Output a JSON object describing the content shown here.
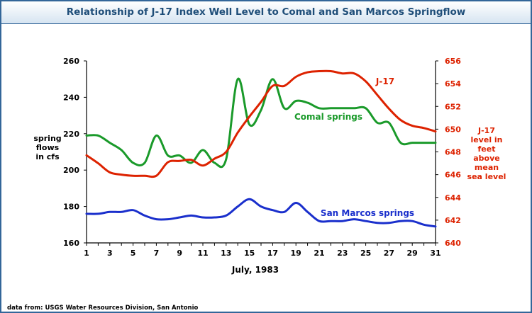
{
  "title": "Relationship of J-17 Index Well Level to Comal and San Marcos Springflow",
  "source": "data from:  USGS Water Resources Division, San Antonio",
  "chart_data": {
    "type": "line",
    "xlabel": "July, 1983",
    "ylabel_left": [
      "spring",
      "flows",
      "in cfs"
    ],
    "ylabel_right": [
      "J-17",
      "level in",
      "feet",
      "above",
      "mean",
      "sea level"
    ],
    "xlim": [
      1,
      31
    ],
    "ylim_left": [
      160,
      260
    ],
    "ylim_right": [
      640,
      656
    ],
    "x_ticks": [
      1,
      3,
      5,
      7,
      9,
      11,
      13,
      15,
      17,
      19,
      21,
      23,
      25,
      27,
      29,
      31
    ],
    "y_ticks_left": [
      160,
      180,
      200,
      220,
      240,
      260
    ],
    "y_ticks_right": [
      640,
      642,
      644,
      646,
      648,
      650,
      652,
      654,
      656
    ],
    "grid": false,
    "series": [
      {
        "name": "Comal springs",
        "axis": "left",
        "color": "#1a9a2a",
        "x": [
          1,
          2,
          3,
          4,
          5,
          6,
          7,
          8,
          9,
          10,
          11,
          12,
          13,
          14,
          15,
          16,
          17,
          18,
          19,
          20,
          21,
          22,
          23,
          24,
          25,
          26,
          27,
          28,
          29,
          30,
          31
        ],
        "values": [
          219,
          219,
          215,
          211,
          204,
          204,
          219,
          208,
          208,
          204,
          211,
          204,
          206,
          250,
          225,
          233,
          250,
          234,
          238,
          237,
          234,
          234,
          234,
          234,
          234,
          226,
          226,
          215,
          215,
          215,
          215
        ]
      },
      {
        "name": "San Marcos springs",
        "axis": "left",
        "color": "#1a2fcc",
        "x": [
          1,
          2,
          3,
          4,
          5,
          6,
          7,
          8,
          9,
          10,
          11,
          12,
          13,
          14,
          15,
          16,
          17,
          18,
          19,
          20,
          21,
          22,
          23,
          24,
          25,
          26,
          27,
          28,
          29,
          30,
          31
        ],
        "values": [
          176,
          176,
          177,
          177,
          178,
          175,
          173,
          173,
          174,
          175,
          174,
          174,
          175,
          180,
          184,
          180,
          178,
          177,
          182,
          177,
          172,
          172,
          172,
          173,
          172,
          171,
          171,
          172,
          172,
          170,
          169
        ]
      },
      {
        "name": "J-17",
        "axis": "right",
        "color": "#dd2200",
        "x": [
          1,
          2,
          3,
          4,
          5,
          6,
          7,
          8,
          9,
          10,
          11,
          12,
          13,
          14,
          15,
          16,
          17,
          18,
          19,
          20,
          21,
          22,
          23,
          24,
          25,
          26,
          27,
          28,
          29,
          30,
          31
        ],
        "values": [
          647.7,
          647.0,
          646.2,
          646.0,
          645.9,
          645.9,
          645.9,
          647.1,
          647.2,
          647.3,
          646.8,
          647.4,
          648.0,
          649.7,
          651.1,
          652.4,
          653.8,
          653.8,
          654.6,
          655.0,
          655.1,
          655.1,
          654.9,
          654.9,
          654.2,
          653.0,
          651.8,
          650.8,
          650.3,
          650.1,
          649.8
        ]
      }
    ],
    "annotations": [
      {
        "text": "J-17",
        "series": "J-17"
      },
      {
        "text": "Comal springs",
        "series": "Comal springs"
      },
      {
        "text": "San Marcos springs",
        "series": "San Marcos springs"
      }
    ]
  }
}
